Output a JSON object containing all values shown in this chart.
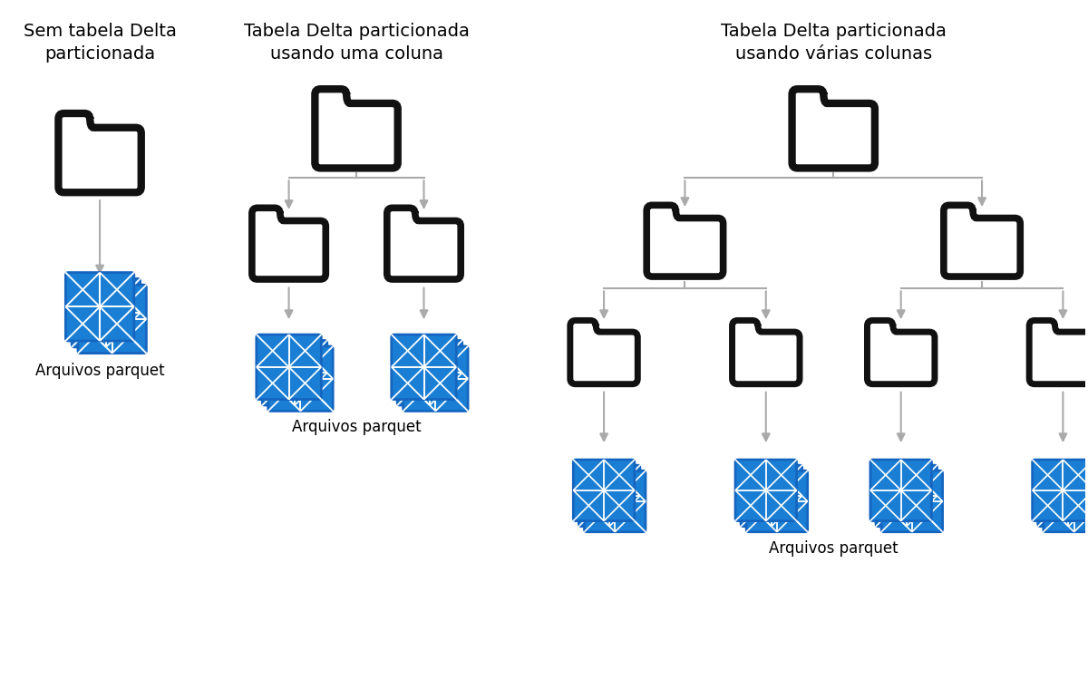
{
  "bg_color": "#ffffff",
  "arrow_color": "#aaaaaa",
  "folder_outline_color": "#111111",
  "folder_fill_color": "#ffffff",
  "parquet_blue": "#1a7fd4",
  "parquet_blue2": "#1565c0",
  "parquet_white": "#ffffff",
  "titles": [
    "Sem tabela Delta\nparticionada",
    "Tabela Delta particionada\nusando uma coluna",
    "Tabela Delta particionada\nusando várias colunas"
  ],
  "label": "Arquivos parquet",
  "title_fontsize": 14,
  "label_fontsize": 12,
  "fig_w": 12.0,
  "fig_h": 7.6,
  "xlim": [
    0,
    12
  ],
  "ylim": [
    0,
    7.6
  ]
}
